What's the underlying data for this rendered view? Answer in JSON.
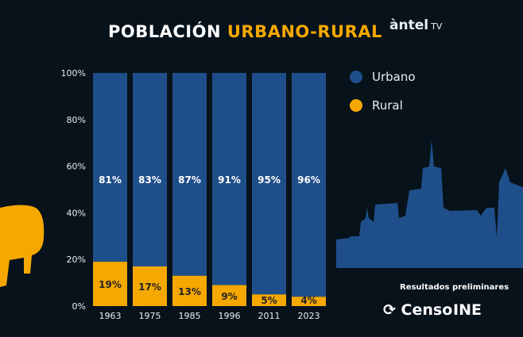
{
  "title": {
    "part1": "POBLACIÓN ",
    "part2": "URBANO-RURAL"
  },
  "brand": {
    "name": "àntel",
    "suffix": "TV"
  },
  "legend": [
    {
      "label": "Urbano",
      "color": "#1f4f8a"
    },
    {
      "label": "Rural",
      "color": "#f5a800"
    }
  ],
  "footer": {
    "note": "Resultados preliminares",
    "logo1": "Censo",
    "logo2": "INE"
  },
  "chart_data": {
    "type": "bar",
    "stacked": true,
    "categories": [
      "1963",
      "1975",
      "1985",
      "1996",
      "2011",
      "2023"
    ],
    "series": [
      {
        "name": "Rural",
        "values": [
          19,
          17,
          13,
          9,
          5,
          4
        ],
        "labels": [
          "19%",
          "17%",
          "13%",
          "9%",
          "5%",
          "4%"
        ],
        "color": "#f5a800"
      },
      {
        "name": "Urbano",
        "values": [
          81,
          83,
          87,
          91,
          95,
          96
        ],
        "labels": [
          "81%",
          "83%",
          "87%",
          "91%",
          "95%",
          "96%"
        ],
        "color": "#1f4f8a"
      }
    ],
    "ylim": [
      0,
      100
    ],
    "yticks": [
      "0%",
      "20%",
      "40%",
      "60%",
      "80%",
      "100%"
    ],
    "grid": false,
    "legend_position": "right"
  }
}
